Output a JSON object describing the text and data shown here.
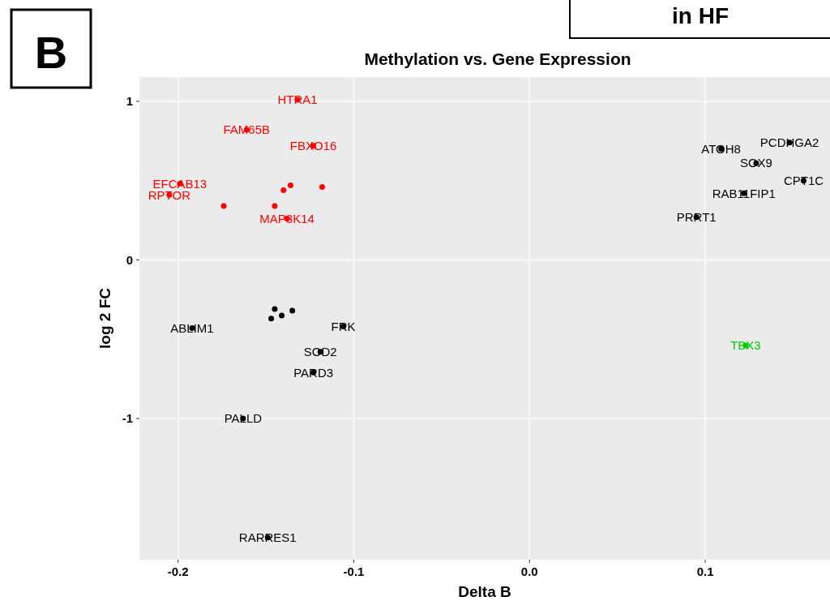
{
  "chart_data": {
    "type": "scatter",
    "title": "Methylation vs. Gene Expression",
    "xlabel": "Delta B",
    "ylabel": "log 2 FC",
    "xlim": [
      -0.222,
      0.171
    ],
    "ylim": [
      -1.89,
      1.153
    ],
    "xticks": [
      -0.2,
      -0.1,
      {
        "value": 0,
        "label": "0.0"
      },
      0.1
    ],
    "yticks": [
      -1,
      0,
      1
    ],
    "grid": true,
    "marker": "circle",
    "series": [
      {
        "color": "#ff0000",
        "x": [
          -0.132,
          -0.161,
          -0.123,
          -0.199,
          -0.205,
          -0.174,
          -0.138,
          -0.136,
          -0.14,
          -0.118,
          -0.145
        ],
        "values": [
          1.01,
          0.82,
          0.72,
          0.48,
          0.41,
          0.34,
          0.26,
          0.47,
          0.44,
          0.46,
          0.34
        ]
      },
      {
        "color": "#000000",
        "x": [
          0.109,
          0.148,
          0.129,
          0.156,
          0.122,
          0.095,
          -0.192,
          -0.106,
          -0.119,
          -0.123,
          -0.163,
          -0.149,
          -0.141,
          -0.145,
          -0.135,
          -0.147
        ],
        "values": [
          0.7,
          0.74,
          0.61,
          0.5,
          0.42,
          0.27,
          -0.43,
          -0.42,
          -0.58,
          -0.71,
          -1.0,
          -1.75,
          -0.35,
          -0.31,
          -0.32,
          -0.37
        ]
      },
      {
        "color": "#00cc00",
        "x": [
          0.123
        ],
        "values": [
          -0.54
        ]
      }
    ],
    "annotations": [
      "B",
      "in HF",
      {
        "text": "HTRA1",
        "x": -0.132,
        "y": 1.01
      },
      {
        "text": "FAM65B",
        "x": -0.161,
        "y": 0.82
      },
      {
        "text": "FBXO16",
        "x": -0.123,
        "y": 0.72
      },
      {
        "text": "EFCAB13",
        "x": -0.199,
        "y": 0.48
      },
      {
        "text": "RPTOR",
        "x": -0.205,
        "y": 0.41
      },
      {
        "text": "MAP3K14",
        "x": -0.138,
        "y": 0.26
      },
      {
        "text": "ATOH8",
        "x": 0.109,
        "y": 0.7
      },
      {
        "text": "PCDHGA2",
        "x": 0.148,
        "y": 0.74
      },
      {
        "text": "SOX9",
        "x": 0.129,
        "y": 0.61
      },
      {
        "text": "CPT1C",
        "x": 0.156,
        "y": 0.5
      },
      {
        "text": "RAB11FIP1",
        "x": 0.122,
        "y": 0.42
      },
      {
        "text": "PRRT1",
        "x": 0.095,
        "y": 0.27
      },
      {
        "text": "ABLIM1",
        "x": -0.192,
        "y": -0.43
      },
      {
        "text": "FRK",
        "x": -0.106,
        "y": -0.42
      },
      {
        "text": "SOD2",
        "x": -0.119,
        "y": -0.58
      },
      {
        "text": "PARD3",
        "x": -0.123,
        "y": -0.71
      },
      {
        "text": "PALLD",
        "x": -0.163,
        "y": -1.0
      },
      {
        "text": "RARRES1",
        "x": -0.149,
        "y": -1.75
      },
      {
        "text": "TBX3",
        "x": 0.123,
        "y": -0.54
      }
    ]
  }
}
